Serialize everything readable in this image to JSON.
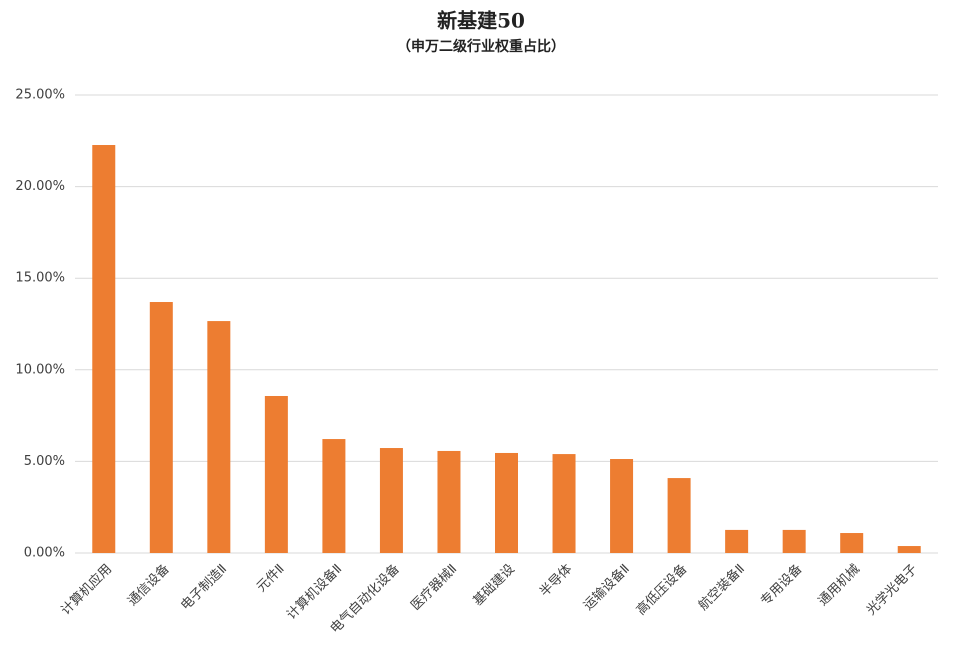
{
  "chart_data": {
    "type": "bar",
    "title": "新基建50",
    "subtitle": "（申万二级行业权重占比）",
    "categories": [
      "计算机应用",
      "通信设备",
      "电子制造Ⅱ",
      "元件Ⅱ",
      "计算机设备Ⅱ",
      "电气自动化设备",
      "医疗器械Ⅱ",
      "基础建设",
      "半导体",
      "运输设备Ⅱ",
      "高低压设备",
      "航空装备Ⅱ",
      "专用设备",
      "通用机械",
      "光学光电子"
    ],
    "values": [
      22.27,
      13.7,
      12.66,
      8.57,
      6.22,
      5.73,
      5.57,
      5.46,
      5.4,
      5.13,
      4.09,
      1.26,
      1.26,
      1.09,
      0.38
    ],
    "color": "#ed7d31",
    "ylim": [
      0,
      25
    ],
    "yticks": [
      {
        "value": 0,
        "label": "0.00%"
      },
      {
        "value": 5,
        "label": "5.00%"
      },
      {
        "value": 10,
        "label": "10.00%"
      },
      {
        "value": 15,
        "label": "15.00%"
      },
      {
        "value": 20,
        "label": "20.00%"
      },
      {
        "value": 25,
        "label": "25.00%"
      }
    ],
    "grid": true
  }
}
